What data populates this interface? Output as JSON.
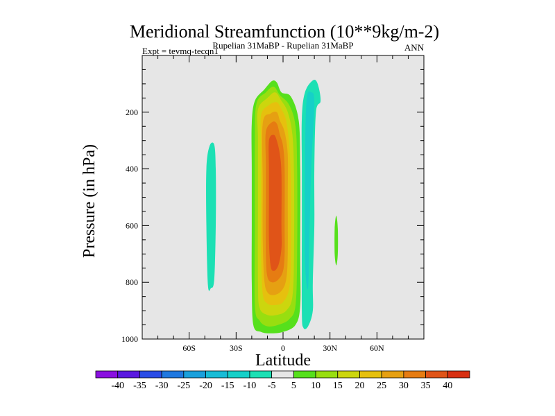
{
  "chart_data": {
    "type": "heatmap",
    "title": "Meridional Streamfunction (10**9kg/m-2)",
    "subtitle": "Rupelian  31MaBP - Rupelian  31MaBP",
    "left_note": "Expt = tevmq-tecqn1",
    "right_note": "ANN",
    "xlabel": "Latitude",
    "ylabel": "Pressure (in hPa)",
    "xlim": [
      -90,
      90
    ],
    "ylim": [
      1000,
      0
    ],
    "x_ticks": [
      {
        "value": -60,
        "label": "60S"
      },
      {
        "value": -30,
        "label": "30S"
      },
      {
        "value": 0,
        "label": "0"
      },
      {
        "value": 30,
        "label": "30N"
      },
      {
        "value": 60,
        "label": "60N"
      }
    ],
    "y_ticks": [
      {
        "value": 200,
        "label": "200"
      },
      {
        "value": 400,
        "label": "400"
      },
      {
        "value": 600,
        "label": "600"
      },
      {
        "value": 800,
        "label": "800"
      },
      {
        "value": 1000,
        "label": "1000"
      }
    ],
    "colorbar": {
      "labels": [
        "-40",
        "-35",
        "-30",
        "-25",
        "-20",
        "-15",
        "-10",
        "-5",
        "5",
        "10",
        "15",
        "20",
        "25",
        "30",
        "35",
        "40"
      ],
      "colors": [
        "#8a10e0",
        "#5a18e0",
        "#2a4ce6",
        "#1f78e0",
        "#1aa0dc",
        "#18bcd6",
        "#16d0c8",
        "#1ce0b4",
        "#e6e6e6",
        "#56e01c",
        "#98de10",
        "#ccd60e",
        "#e6c00e",
        "#e6a012",
        "#e67c12",
        "#e05418",
        "#d83012"
      ]
    },
    "regions": [
      {
        "name": "sh-negative-cell",
        "range": "-10 to -5",
        "color": "#1ce0b4",
        "outline": [
          [
            -47,
            320
          ],
          [
            -44,
            315
          ],
          [
            -43,
            400
          ],
          [
            -43,
            600
          ],
          [
            -44,
            790
          ],
          [
            -46,
            820
          ],
          [
            -48,
            810
          ],
          [
            -49,
            600
          ],
          [
            -49,
            400
          ]
        ]
      },
      {
        "name": "nh-negative-cell-outer",
        "range": "-10 to -5",
        "color": "#1ce0b4",
        "outline": [
          [
            14,
            130
          ],
          [
            19,
            88
          ],
          [
            22,
            98
          ],
          [
            24,
            160
          ],
          [
            21,
            200
          ],
          [
            20,
            400
          ],
          [
            20,
            600
          ],
          [
            19,
            800
          ],
          [
            19,
            900
          ],
          [
            16,
            955
          ],
          [
            13,
            960
          ],
          [
            12,
            900
          ],
          [
            12,
            600
          ],
          [
            12,
            400
          ],
          [
            12,
            220
          ]
        ]
      },
      {
        "name": "nh-negative-cell-inner",
        "range": "-15 to -10",
        "color": "#16d0c8",
        "outline": [
          [
            15,
            160
          ],
          [
            18,
            130
          ],
          [
            20,
            170
          ],
          [
            18,
            400
          ],
          [
            17,
            600
          ],
          [
            16,
            820
          ],
          [
            14,
            720
          ],
          [
            14,
            400
          ]
        ]
      },
      {
        "name": "nh-small-cell",
        "range": "5 to 10",
        "color": "#56e01c",
        "outline": [
          [
            34,
            565
          ],
          [
            35,
            610
          ],
          [
            35,
            700
          ],
          [
            34,
            740
          ],
          [
            33,
            700
          ],
          [
            33,
            610
          ]
        ]
      },
      {
        "name": "main-cell-5",
        "range": "5 to 10",
        "color": "#56e01c",
        "outline": [
          [
            -18,
            160
          ],
          [
            -12,
            120
          ],
          [
            -7,
            90
          ],
          [
            -4,
            95
          ],
          [
            -1,
            130
          ],
          [
            5,
            145
          ],
          [
            10,
            230
          ],
          [
            11,
            400
          ],
          [
            11,
            700
          ],
          [
            11,
            880
          ],
          [
            8,
            950
          ],
          [
            0,
            975
          ],
          [
            -8,
            980
          ],
          [
            -14,
            975
          ],
          [
            -19,
            950
          ],
          [
            -20,
            800
          ],
          [
            -20,
            600
          ],
          [
            -20,
            400
          ],
          [
            -20,
            240
          ]
        ]
      },
      {
        "name": "main-cell-10",
        "range": "10 to 15",
        "color": "#98de10",
        "outline": [
          [
            -17,
            170
          ],
          [
            -11,
            130
          ],
          [
            -6,
            110
          ],
          [
            -2,
            140
          ],
          [
            4,
            175
          ],
          [
            8,
            250
          ],
          [
            9,
            400
          ],
          [
            9,
            700
          ],
          [
            8,
            880
          ],
          [
            4,
            930
          ],
          [
            -3,
            950
          ],
          [
            -10,
            955
          ],
          [
            -15,
            935
          ],
          [
            -18,
            880
          ],
          [
            -18,
            600
          ],
          [
            -18,
            300
          ]
        ]
      },
      {
        "name": "main-cell-15",
        "range": "15 to 20",
        "color": "#ccd60e",
        "outline": [
          [
            -16,
            190
          ],
          [
            -10,
            150
          ],
          [
            -5,
            130
          ],
          [
            -1,
            160
          ],
          [
            3,
            200
          ],
          [
            6,
            280
          ],
          [
            7,
            420
          ],
          [
            7,
            700
          ],
          [
            6,
            850
          ],
          [
            2,
            900
          ],
          [
            -4,
            915
          ],
          [
            -10,
            915
          ],
          [
            -15,
            890
          ],
          [
            -16,
            800
          ],
          [
            -16,
            500
          ],
          [
            -16,
            300
          ]
        ]
      },
      {
        "name": "main-cell-20",
        "range": "20 to 25",
        "color": "#e6c00e",
        "outline": [
          [
            -14,
            210
          ],
          [
            -9,
            175
          ],
          [
            -4,
            165
          ],
          [
            -1,
            190
          ],
          [
            2,
            230
          ],
          [
            4,
            320
          ],
          [
            5,
            450
          ],
          [
            5,
            700
          ],
          [
            4,
            820
          ],
          [
            0,
            870
          ],
          [
            -5,
            880
          ],
          [
            -10,
            875
          ],
          [
            -13,
            840
          ],
          [
            -14,
            700
          ],
          [
            -14,
            500
          ],
          [
            -14,
            320
          ]
        ]
      },
      {
        "name": "main-cell-25",
        "range": "25 to 30",
        "color": "#e6a012",
        "outline": [
          [
            -13,
            240
          ],
          [
            -8,
            205
          ],
          [
            -4,
            200
          ],
          [
            -2,
            230
          ],
          [
            1,
            270
          ],
          [
            3,
            350
          ],
          [
            3,
            500
          ],
          [
            3,
            700
          ],
          [
            2,
            790
          ],
          [
            -1,
            830
          ],
          [
            -6,
            845
          ],
          [
            -10,
            835
          ],
          [
            -12,
            790
          ],
          [
            -13,
            650
          ],
          [
            -13,
            450
          ]
        ]
      },
      {
        "name": "main-cell-30",
        "range": "30 to 35",
        "color": "#e67c12",
        "outline": [
          [
            -11,
            270
          ],
          [
            -7,
            235
          ],
          [
            -4,
            240
          ],
          [
            -2,
            280
          ],
          [
            0,
            320
          ],
          [
            1,
            400
          ],
          [
            1,
            600
          ],
          [
            1,
            700
          ],
          [
            0,
            760
          ],
          [
            -3,
            790
          ],
          [
            -7,
            800
          ],
          [
            -10,
            780
          ],
          [
            -11,
            700
          ],
          [
            -11,
            500
          ],
          [
            -11,
            380
          ]
        ]
      },
      {
        "name": "main-cell-35",
        "range": "35 to 40",
        "color": "#e05418",
        "outline": [
          [
            -9,
            300
          ],
          [
            -6,
            280
          ],
          [
            -4,
            300
          ],
          [
            -2,
            350
          ],
          [
            -1,
            420
          ],
          [
            -1,
            600
          ],
          [
            -1,
            680
          ],
          [
            -3,
            740
          ],
          [
            -6,
            760
          ],
          [
            -8,
            740
          ],
          [
            -9,
            650
          ],
          [
            -9,
            500
          ],
          [
            -9,
            400
          ]
        ]
      }
    ]
  }
}
